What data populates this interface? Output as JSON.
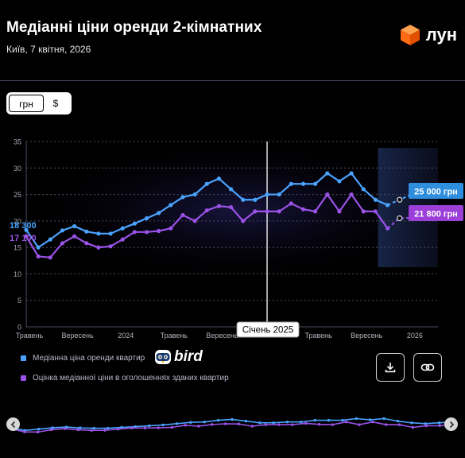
{
  "header": {
    "title": "Медіанні ціни оренди 2-кімнатних",
    "subtitle": "Київ, 7 квітня, 2026",
    "brand": "лун",
    "brand_color": "#ff6a14"
  },
  "currency_toggle": {
    "options": [
      "грн",
      "$"
    ],
    "selected": "грн"
  },
  "chart_data": {
    "type": "line",
    "y_ticks": [
      "0",
      "5",
      "10",
      "15",
      "20",
      "25",
      "30",
      "35"
    ],
    "ylim": [
      0,
      35
    ],
    "x_tick_labels": [
      {
        "label": "Травень",
        "i": 0
      },
      {
        "label": "Вересень",
        "i": 4
      },
      {
        "label": "2024",
        "i": 8
      },
      {
        "label": "Травень",
        "i": 12
      },
      {
        "label": "Вересень",
        "i": 16
      },
      {
        "label": "Травень",
        "i": 24
      },
      {
        "label": "Вересень",
        "i": 28
      },
      {
        "label": "2026",
        "i": 32
      }
    ],
    "series": [
      {
        "name": "Медіанна ціна оренди квартир",
        "color": "#4aa3ff",
        "values": [
          18.3,
          15.0,
          16.5,
          18.2,
          19.0,
          18.0,
          17.6,
          17.6,
          18.6,
          19.5,
          20.5,
          21.5,
          23.0,
          24.5,
          25.0,
          27.0,
          28.0,
          26.0,
          24.0,
          24.0,
          25.0,
          25.0,
          27.0,
          27.0,
          27.0,
          29.0,
          27.5,
          29.0,
          26.0,
          24.0,
          23.0,
          24.0,
          25.0
        ],
        "first_label": "18 300",
        "end_label": "25 000 грн"
      },
      {
        "name": "Оцінка медіанної ціни в оголошеннях зданих квартир",
        "color": "#9b52e8",
        "values": [
          17.1,
          13.3,
          13.1,
          15.8,
          17.1,
          15.8,
          15.0,
          15.2,
          16.5,
          17.9,
          17.9,
          18.1,
          18.6,
          21.1,
          20.0,
          22.0,
          22.8,
          22.6,
          20.0,
          21.8,
          21.8,
          21.8,
          23.3,
          22.2,
          21.8,
          25.0,
          21.8,
          25.0,
          21.8,
          21.8,
          18.6,
          20.5,
          20.6,
          21.8
        ],
        "first_label": "17 100",
        "end_label": "21 800 грн"
      }
    ],
    "crosshair_label": "Січень 2025",
    "crosshair_index": 20,
    "forecast_start_index": 30
  },
  "legend": [
    {
      "label": "Медіанна ціна оренди квартир",
      "color": "#4aa3ff"
    },
    {
      "label": "Оцінка медіанної ціни в оголошеннях зданих квартир",
      "color": "#9b52e8"
    }
  ],
  "partner": {
    "name": "bird"
  },
  "actions": {
    "download_icon": "download-icon",
    "link_icon": "link-icon"
  },
  "navigator": {
    "left_icon": "chevron-left-icon",
    "right_icon": "chevron-right-icon"
  }
}
